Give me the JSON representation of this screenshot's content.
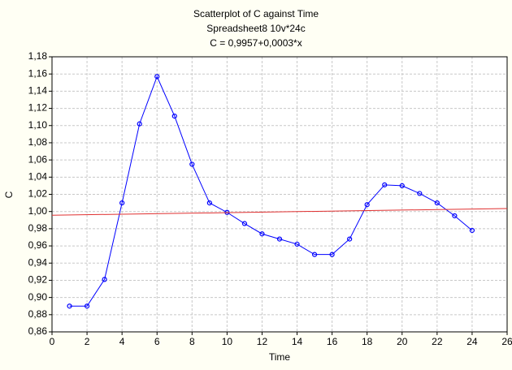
{
  "chart_data": {
    "type": "scatter",
    "title": "Scatterplot of C against Time",
    "subtitle": "Spreadsheet8 10v*24c",
    "annotation": "C = 0,9957+0,0003*x",
    "xlabel": "Time",
    "ylabel": "C",
    "xlim": [
      0,
      26
    ],
    "xticks": [
      0,
      2,
      4,
      6,
      8,
      10,
      12,
      14,
      16,
      18,
      20,
      22,
      24,
      26
    ],
    "ylim": [
      0.86,
      1.18
    ],
    "yticks": [
      {
        "value": 0.86,
        "label": "0,86"
      },
      {
        "value": 0.88,
        "label": "0,88"
      },
      {
        "value": 0.9,
        "label": "0,90"
      },
      {
        "value": 0.92,
        "label": "0,92"
      },
      {
        "value": 0.94,
        "label": "0,94"
      },
      {
        "value": 0.96,
        "label": "0,96"
      },
      {
        "value": 0.98,
        "label": "0,98"
      },
      {
        "value": 1.0,
        "label": "1,00"
      },
      {
        "value": 1.02,
        "label": "1,02"
      },
      {
        "value": 1.04,
        "label": "1,04"
      },
      {
        "value": 1.06,
        "label": "1,06"
      },
      {
        "value": 1.08,
        "label": "1,08"
      },
      {
        "value": 1.1,
        "label": "1,10"
      },
      {
        "value": 1.12,
        "label": "1,12"
      },
      {
        "value": 1.14,
        "label": "1,14"
      },
      {
        "value": 1.16,
        "label": "1,16"
      },
      {
        "value": 1.18,
        "label": "1,18"
      }
    ],
    "grid": true,
    "series": [
      {
        "color": "#0000ff",
        "markers": true,
        "x": [
          1,
          2,
          3,
          4,
          5,
          6,
          7,
          8,
          9,
          10,
          11,
          12,
          13,
          14,
          15,
          16,
          17,
          18,
          19,
          20,
          21,
          22,
          23,
          24
        ],
        "values": [
          0.89,
          0.89,
          0.921,
          1.01,
          1.102,
          1.157,
          1.111,
          1.055,
          1.01,
          0.999,
          0.986,
          0.974,
          0.968,
          0.962,
          0.95,
          0.95,
          0.968,
          1.008,
          1.031,
          1.03,
          1.021,
          1.01,
          0.995,
          0.978
        ]
      },
      {
        "color": "#e03030",
        "markers": false,
        "x": [
          0,
          26
        ],
        "values": [
          0.9957,
          1.0035
        ]
      }
    ]
  }
}
